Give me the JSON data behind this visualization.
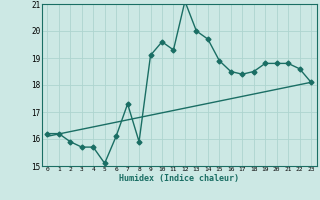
{
  "xlabel": "Humidex (Indice chaleur)",
  "background_color": "#cce8e4",
  "line_color": "#1a6e64",
  "grid_color": "#aed4cf",
  "xlim": [
    -0.5,
    23.5
  ],
  "ylim": [
    15,
    21
  ],
  "xticks": [
    0,
    1,
    2,
    3,
    4,
    5,
    6,
    7,
    8,
    9,
    10,
    11,
    12,
    13,
    14,
    15,
    16,
    17,
    18,
    19,
    20,
    21,
    22,
    23
  ],
  "yticks": [
    15,
    16,
    17,
    18,
    19,
    20,
    21
  ],
  "series1_x": [
    0,
    1,
    2,
    3,
    4,
    5,
    6,
    7,
    8,
    9,
    10,
    11,
    12,
    13,
    14,
    15,
    16,
    17,
    18,
    19,
    20,
    21,
    22,
    23
  ],
  "series1_y": [
    16.2,
    16.2,
    15.9,
    15.7,
    15.7,
    15.1,
    16.1,
    17.3,
    15.9,
    19.1,
    19.6,
    19.3,
    21.1,
    20.0,
    19.7,
    18.9,
    18.5,
    18.4,
    18.5,
    18.8,
    18.8,
    18.8,
    18.6,
    18.1
  ],
  "series2_x": [
    0,
    23
  ],
  "series2_y": [
    16.1,
    18.1
  ],
  "marker": "D",
  "marker_size": 2.5,
  "linewidth": 1.0
}
